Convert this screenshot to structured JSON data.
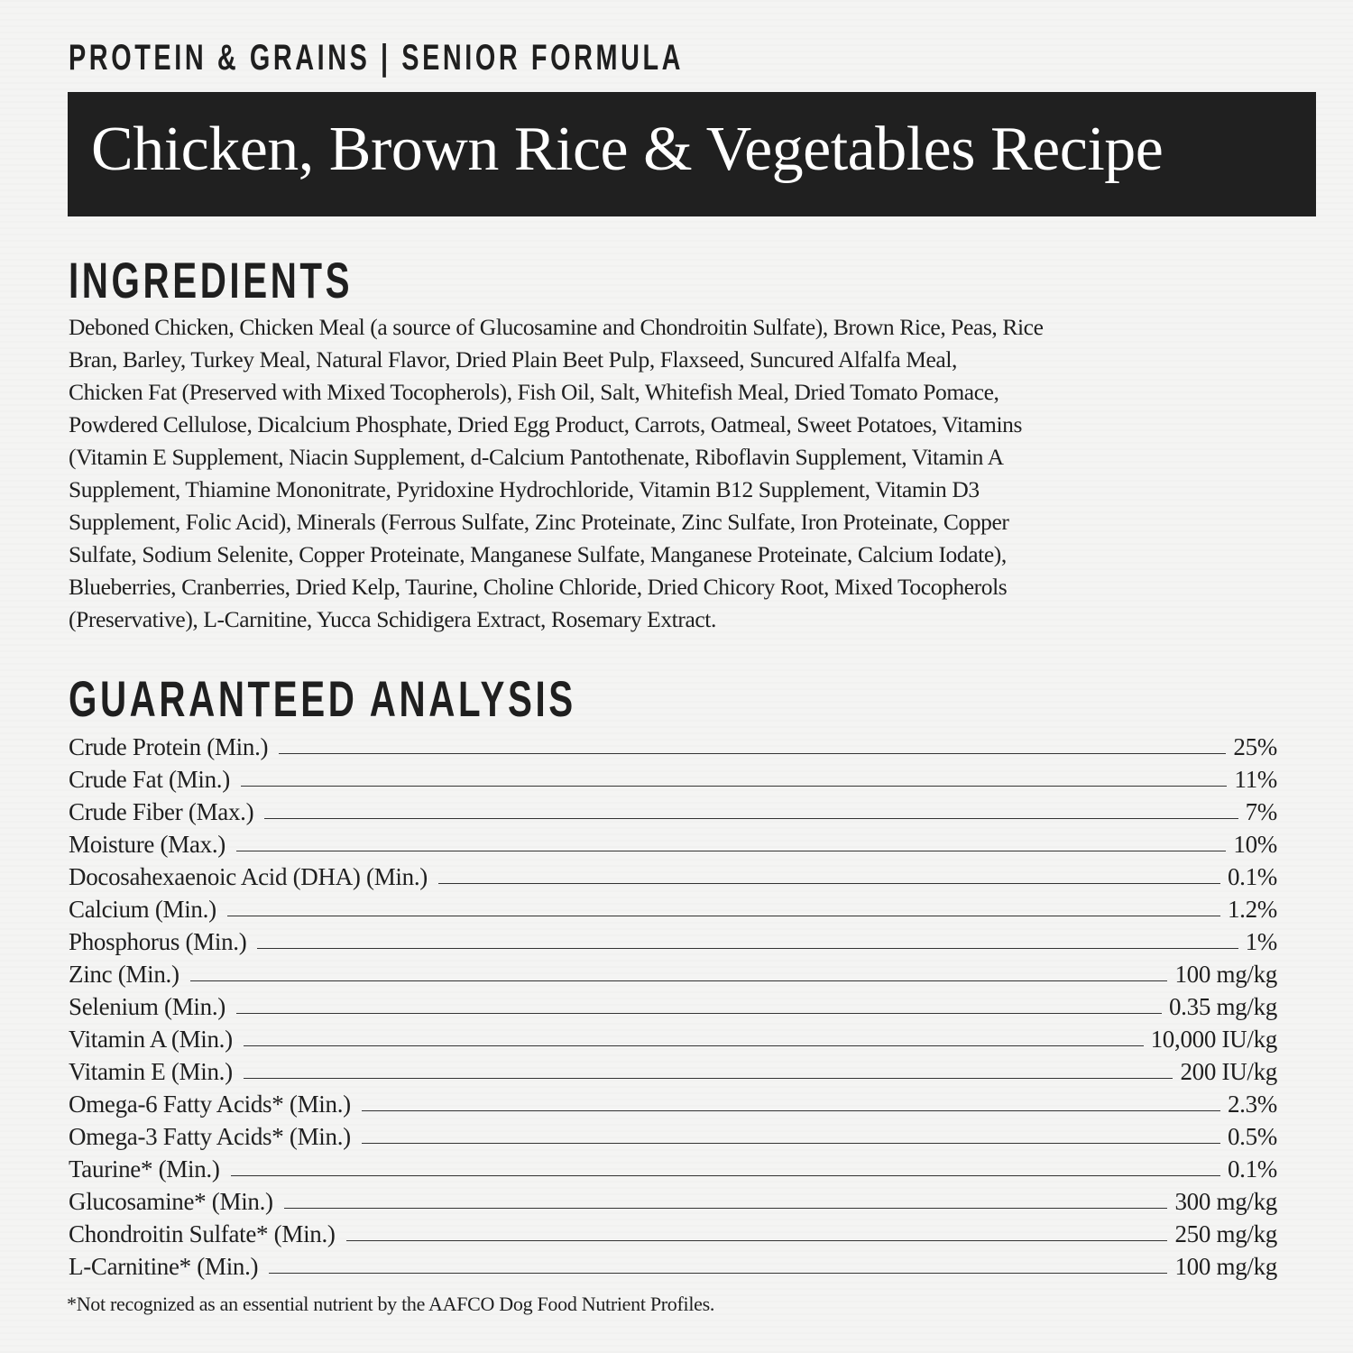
{
  "eyebrow": "PROTEIN & GRAINS | SENIOR FORMULA",
  "title": "Chicken, Brown Rice & Vegetables Recipe",
  "ingredients": {
    "heading": "INGREDIENTS",
    "lines": [
      "Deboned Chicken, Chicken Meal (a source of Glucosamine and Chondroitin Sulfate), Brown Rice, Peas, Rice",
      "Bran, Barley, Turkey Meal, Natural Flavor, Dried Plain Beet Pulp, Flaxseed, Suncured Alfalfa Meal,",
      "Chicken Fat (Preserved with Mixed Tocopherols), Fish Oil, Salt, Whitefish Meal, Dried Tomato Pomace,",
      "Powdered Cellulose, Dicalcium Phosphate, Dried Egg Product, Carrots, Oatmeal, Sweet Potatoes, Vitamins",
      "(Vitamin E Supplement, Niacin Supplement, d-Calcium Pantothenate, Riboflavin Supplement, Vitamin A",
      "Supplement, Thiamine Mononitrate, Pyridoxine Hydrochloride, Vitamin B12 Supplement, Vitamin D3",
      "Supplement, Folic Acid), Minerals (Ferrous Sulfate, Zinc Proteinate, Zinc Sulfate, Iron Proteinate, Copper",
      "Sulfate, Sodium Selenite, Copper Proteinate, Manganese Sulfate, Manganese Proteinate, Calcium Iodate),",
      "Blueberries, Cranberries, Dried Kelp, Taurine, Choline Chloride, Dried Chicory Root, Mixed Tocopherols",
      "(Preservative), L-Carnitine, Yucca Schidigera Extract, Rosemary Extract."
    ]
  },
  "analysis": {
    "heading": "GUARANTEED ANALYSIS",
    "rows": [
      {
        "label": "Crude Protein (Min.)",
        "value": "25%"
      },
      {
        "label": "Crude Fat (Min.)",
        "value": "11%"
      },
      {
        "label": "Crude Fiber (Max.)",
        "value": "7%"
      },
      {
        "label": "Moisture (Max.)",
        "value": "10%"
      },
      {
        "label": "Docosahexaenoic Acid (DHA) (Min.)",
        "value": "0.1%"
      },
      {
        "label": "Calcium (Min.)",
        "value": "1.2%"
      },
      {
        "label": "Phosphorus (Min.)",
        "value": "1%"
      },
      {
        "label": "Zinc (Min.)",
        "value": "100 mg/kg"
      },
      {
        "label": "Selenium (Min.)",
        "value": "0.35 mg/kg"
      },
      {
        "label": "Vitamin A (Min.)",
        "value": "10,000 IU/kg"
      },
      {
        "label": "Vitamin E (Min.)",
        "value": "200 IU/kg"
      },
      {
        "label": "Omega-6 Fatty Acids* (Min.)",
        "value": "2.3%"
      },
      {
        "label": "Omega-3 Fatty Acids* (Min.)",
        "value": "0.5%"
      },
      {
        "label": "Taurine* (Min.)",
        "value": "0.1%"
      },
      {
        "label": "Glucosamine* (Min.)",
        "value": "300 mg/kg"
      },
      {
        "label": "Chondroitin Sulfate* (Min.)",
        "value": "250 mg/kg"
      },
      {
        "label": "L-Carnitine* (Min.)",
        "value": "100 mg/kg"
      }
    ]
  },
  "footnote": "*Not recognized as an essential nutrient by the AAFCO Dog Food Nutrient Profiles."
}
